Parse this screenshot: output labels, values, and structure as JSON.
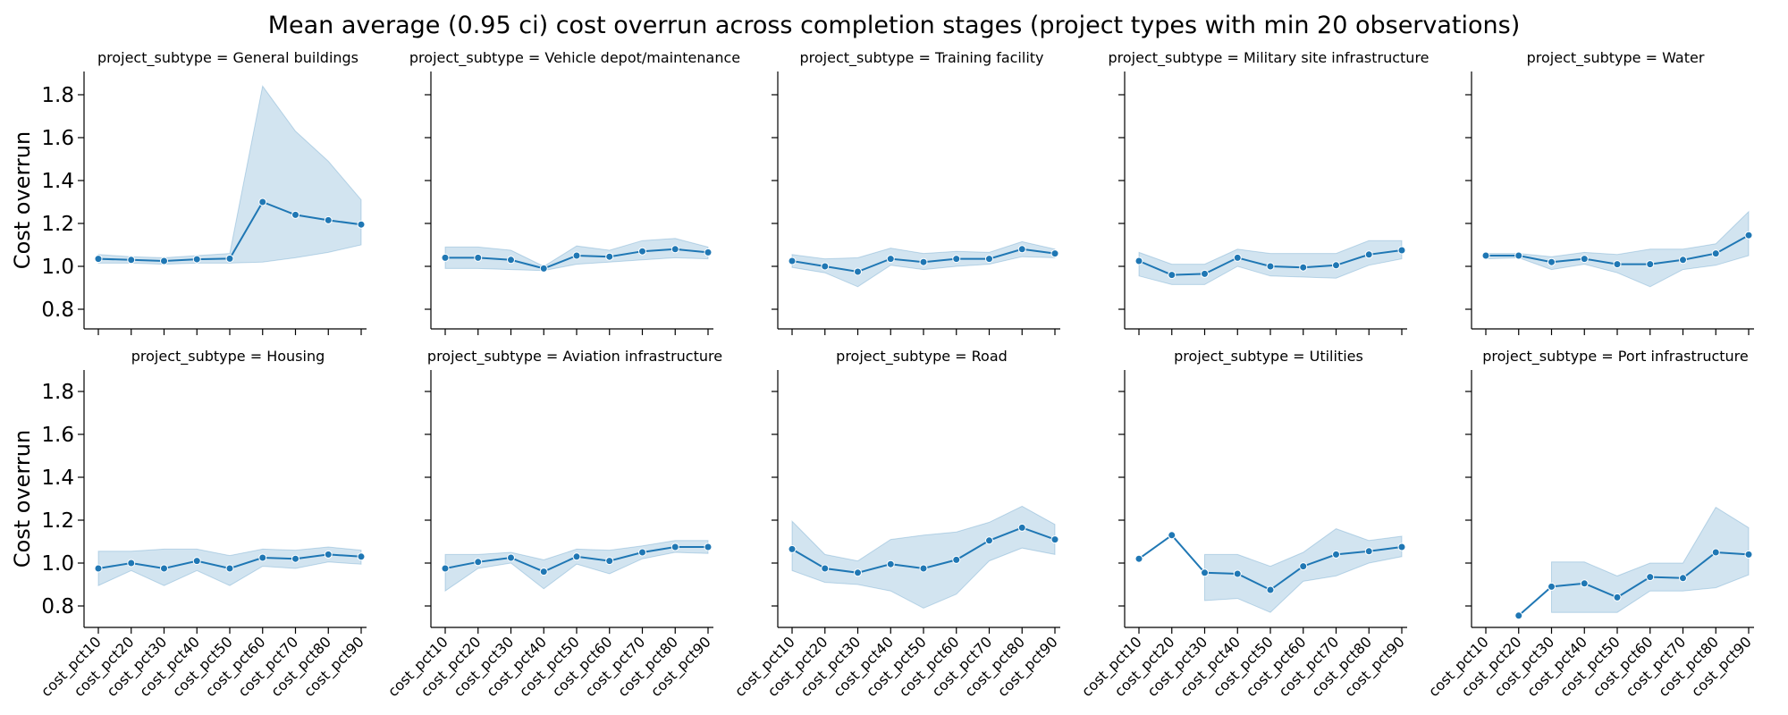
{
  "chart_data": {
    "type": "line",
    "title": "Mean average (0.95 ci) cost overrun across completion stages (project types with min 20 observations)",
    "ylabel": "Cost overrun",
    "ylim": [
      0.7,
      1.9
    ],
    "yticks": [
      0.8,
      1.0,
      1.2,
      1.4,
      1.6,
      1.8
    ],
    "categories": [
      "cost_pct10",
      "cost_pct20",
      "cost_pct30",
      "cost_pct40",
      "cost_pct50",
      "cost_pct60",
      "cost_pct70",
      "cost_pct80",
      "cost_pct90"
    ],
    "line_color": "#1f77b4",
    "band_color": "#1f77b4",
    "legend": "none",
    "grid": false,
    "panels": [
      {
        "title": "project_subtype = General buildings",
        "mean": [
          1.035,
          1.03,
          1.025,
          1.033,
          1.036,
          1.3,
          1.24,
          1.215,
          1.195
        ],
        "lower": [
          1.015,
          1.015,
          1.01,
          1.015,
          1.015,
          1.02,
          1.04,
          1.065,
          1.1
        ],
        "upper": [
          1.055,
          1.045,
          1.04,
          1.05,
          1.06,
          1.84,
          1.63,
          1.49,
          1.31
        ]
      },
      {
        "title": "project_subtype = Vehicle depot/maintenance",
        "mean": [
          1.04,
          1.04,
          1.03,
          0.99,
          1.05,
          1.045,
          1.07,
          1.08,
          1.065
        ],
        "lower": [
          0.99,
          0.99,
          0.985,
          0.98,
          1.01,
          1.02,
          1.03,
          1.04,
          1.035
        ],
        "upper": [
          1.09,
          1.09,
          1.075,
          1.0,
          1.095,
          1.075,
          1.12,
          1.13,
          1.09
        ]
      },
      {
        "title": "project_subtype = Training facility",
        "mean": [
          1.025,
          1.0,
          0.975,
          1.035,
          1.02,
          1.035,
          1.035,
          1.08,
          1.06
        ],
        "lower": [
          0.995,
          0.97,
          0.905,
          1.005,
          0.985,
          1.0,
          1.01,
          1.045,
          1.04
        ],
        "upper": [
          1.055,
          1.035,
          1.04,
          1.085,
          1.06,
          1.07,
          1.065,
          1.115,
          1.08
        ]
      },
      {
        "title": "project_subtype = Military site infrastructure",
        "mean": [
          1.025,
          0.96,
          0.965,
          1.04,
          1.0,
          0.995,
          1.005,
          1.055,
          1.075
        ],
        "lower": [
          0.955,
          0.915,
          0.915,
          1.0,
          0.955,
          0.95,
          0.945,
          1.005,
          1.035
        ],
        "upper": [
          1.065,
          1.01,
          1.01,
          1.08,
          1.06,
          1.06,
          1.06,
          1.12,
          1.12
        ]
      },
      {
        "title": "project_subtype = Water",
        "mean": [
          1.05,
          1.05,
          1.02,
          1.035,
          1.01,
          1.01,
          1.03,
          1.06,
          1.145
        ],
        "lower": [
          1.035,
          1.04,
          0.985,
          1.01,
          0.97,
          0.905,
          0.985,
          1.005,
          1.05
        ],
        "upper": [
          1.06,
          1.06,
          1.045,
          1.065,
          1.055,
          1.08,
          1.08,
          1.105,
          1.255
        ]
      },
      {
        "title": "project_subtype = Housing",
        "mean": [
          0.975,
          1.0,
          0.975,
          1.01,
          0.975,
          1.025,
          1.02,
          1.04,
          1.03
        ],
        "lower": [
          0.895,
          0.965,
          0.895,
          0.965,
          0.895,
          0.985,
          0.975,
          1.005,
          0.995
        ],
        "upper": [
          1.055,
          1.055,
          1.065,
          1.065,
          1.035,
          1.065,
          1.06,
          1.075,
          1.06
        ]
      },
      {
        "title": "project_subtype = Aviation infrastructure",
        "mean": [
          0.975,
          1.005,
          1.025,
          0.96,
          1.03,
          1.01,
          1.05,
          1.075,
          1.075
        ],
        "lower": [
          0.87,
          0.975,
          1.0,
          0.88,
          0.995,
          0.95,
          1.02,
          1.05,
          1.045
        ],
        "upper": [
          1.04,
          1.04,
          1.05,
          1.015,
          1.065,
          1.06,
          1.08,
          1.105,
          1.105
        ]
      },
      {
        "title": "project_subtype = Road",
        "mean": [
          1.065,
          0.975,
          0.955,
          0.995,
          0.975,
          1.015,
          1.105,
          1.165,
          1.11
        ],
        "lower": [
          0.965,
          0.91,
          0.9,
          0.87,
          0.79,
          0.855,
          1.01,
          1.07,
          1.04
        ],
        "upper": [
          1.195,
          1.04,
          1.01,
          1.11,
          1.13,
          1.145,
          1.19,
          1.265,
          1.18
        ]
      },
      {
        "title": "project_subtype = Utilities",
        "mean": [
          1.02,
          1.13,
          0.955,
          0.95,
          0.875,
          0.985,
          1.04,
          1.055,
          1.075
        ],
        "lower": [
          null,
          null,
          0.825,
          0.835,
          0.77,
          0.915,
          0.94,
          1.0,
          1.03
        ],
        "upper": [
          null,
          null,
          1.04,
          1.04,
          0.985,
          1.05,
          1.16,
          1.105,
          1.125
        ]
      },
      {
        "title": "project_subtype = Port infrastructure",
        "mean": [
          null,
          0.755,
          0.89,
          0.905,
          0.84,
          0.935,
          0.93,
          1.05,
          1.04
        ],
        "lower": [
          null,
          null,
          0.77,
          0.77,
          0.77,
          0.87,
          0.87,
          0.885,
          0.945
        ],
        "upper": [
          null,
          null,
          1.005,
          1.005,
          0.94,
          1.0,
          1.0,
          1.26,
          1.165
        ]
      }
    ]
  }
}
